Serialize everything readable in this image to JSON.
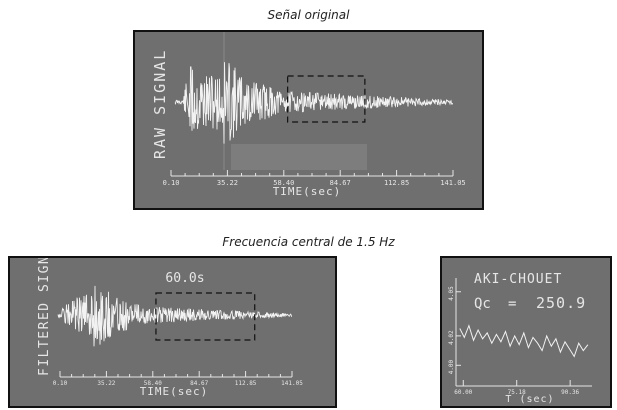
{
  "captions": {
    "top": "Señal original",
    "bottom": "Frecuencia central de 1.5 Hz"
  },
  "chart_data": [
    {
      "type": "line",
      "ylabel": "RAW SIGNAL",
      "xlabel": "TIME(sec)",
      "x_ticks": [
        "0.10",
        "35.22",
        "58.40",
        "84.67",
        "112.85",
        "141.05"
      ],
      "xlim": [
        0.1,
        141.05
      ],
      "window": [
        58.4,
        97.0
      ],
      "colors": {
        "bg": "#6f6f6f",
        "trace": "#f2f2f2",
        "text": "#e6e6e6"
      }
    },
    {
      "type": "line",
      "ylabel": "FILTERED SIGN",
      "xlabel": "TIME(sec)",
      "annotation": "60.0s",
      "x_ticks": [
        "0.10",
        "35.22",
        "58.40",
        "84.67",
        "112.85",
        "141.05"
      ],
      "xlim": [
        0.1,
        141.05
      ],
      "window": [
        58.4,
        118.4
      ],
      "colors": {
        "bg": "#6f6f6f",
        "trace": "#f2f2f2",
        "text": "#e6e6e6"
      }
    },
    {
      "type": "line",
      "title": "AKI-CHOUET",
      "q_label": "Qc",
      "q_value": "250.9",
      "xlabel": "T (sec)",
      "x_ticks": [
        "60.00",
        "75.18",
        "90.36"
      ],
      "y_ticks": [
        "4.00",
        "4.02",
        "4.05"
      ],
      "xlim": [
        58.5,
        96.0
      ],
      "ylim": [
        3.99,
        4.058
      ],
      "x": [
        59.0,
        60.3,
        61.6,
        62.9,
        64.2,
        65.5,
        66.8,
        68.1,
        69.4,
        70.7,
        72.0,
        73.3,
        74.6,
        75.9,
        77.2,
        78.5,
        79.8,
        81.1,
        82.4,
        83.7,
        85.0,
        86.3,
        87.6,
        88.9,
        90.2,
        91.5,
        92.8,
        94.1,
        95.4
      ],
      "y": [
        4.025,
        4.019,
        4.027,
        4.017,
        4.024,
        4.018,
        4.022,
        4.015,
        4.021,
        4.016,
        4.023,
        4.013,
        4.02,
        4.014,
        4.022,
        4.012,
        4.019,
        4.015,
        4.01,
        4.02,
        4.013,
        4.018,
        4.009,
        4.016,
        4.011,
        4.006,
        4.015,
        4.01,
        4.014
      ],
      "colors": {
        "bg": "#6f6f6f",
        "trace": "#f2f2f2",
        "text": "#e6e6e6"
      }
    }
  ]
}
